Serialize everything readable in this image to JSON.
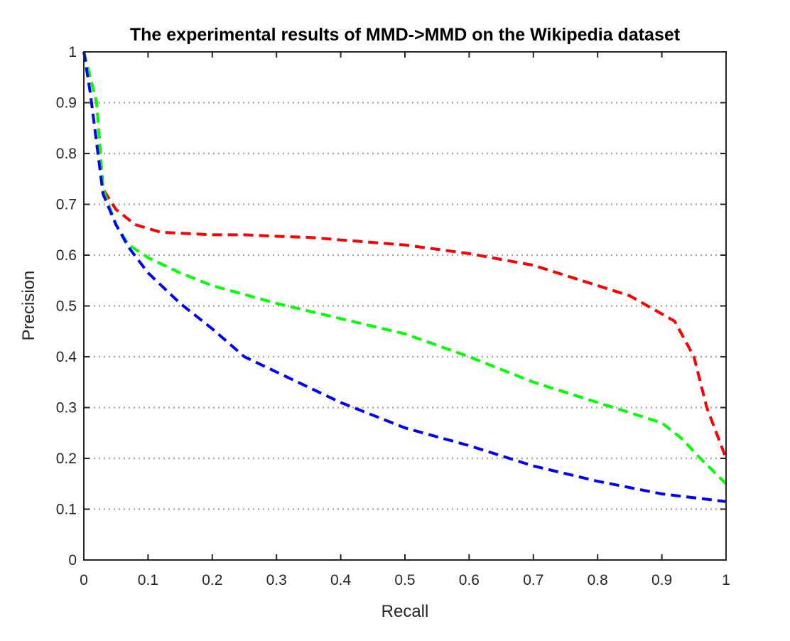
{
  "chart_data": {
    "type": "line",
    "title": "The experimental results of MMD->MMD on the Wikipedia dataset",
    "xlabel": "Recall",
    "ylabel": "Precision",
    "xlim": [
      0,
      1
    ],
    "ylim": [
      0,
      1
    ],
    "xticks": [
      "0",
      "0.1",
      "0.2",
      "0.3",
      "0.4",
      "0.5",
      "0.6",
      "0.7",
      "0.8",
      "0.9",
      "1"
    ],
    "yticks": [
      "0",
      "0.1",
      "0.2",
      "0.3",
      "0.4",
      "0.5",
      "0.6",
      "0.7",
      "0.8",
      "0.9",
      "1"
    ],
    "grid": "horizontal dotted",
    "legend": "none",
    "series": [
      {
        "color": "#ff0000",
        "x": [
          0.0,
          0.02,
          0.03,
          0.05,
          0.08,
          0.12,
          0.2,
          0.25,
          0.3,
          0.35,
          0.4,
          0.5,
          0.6,
          0.7,
          0.85,
          0.92,
          0.95,
          0.97,
          1.0
        ],
        "y": [
          1.0,
          0.9,
          0.73,
          0.69,
          0.66,
          0.645,
          0.64,
          0.64,
          0.637,
          0.635,
          0.63,
          0.62,
          0.603,
          0.58,
          0.52,
          0.47,
          0.4,
          0.3,
          0.2
        ]
      },
      {
        "color": "#00ff00",
        "x": [
          0.0,
          0.02,
          0.03,
          0.05,
          0.07,
          0.1,
          0.15,
          0.2,
          0.3,
          0.4,
          0.5,
          0.6,
          0.7,
          0.8,
          0.9,
          0.93,
          0.96,
          1.0
        ],
        "y": [
          1.0,
          0.9,
          0.73,
          0.66,
          0.62,
          0.595,
          0.565,
          0.54,
          0.505,
          0.475,
          0.445,
          0.4,
          0.35,
          0.31,
          0.27,
          0.24,
          0.2,
          0.15
        ]
      },
      {
        "color": "#0000ff",
        "x": [
          0.0,
          0.01,
          0.02,
          0.03,
          0.05,
          0.07,
          0.1,
          0.15,
          0.2,
          0.25,
          0.3,
          0.4,
          0.5,
          0.6,
          0.7,
          0.8,
          0.9,
          1.0
        ],
        "y": [
          1.0,
          0.92,
          0.82,
          0.72,
          0.66,
          0.615,
          0.565,
          0.505,
          0.455,
          0.4,
          0.37,
          0.31,
          0.26,
          0.225,
          0.185,
          0.155,
          0.13,
          0.115
        ]
      }
    ]
  }
}
